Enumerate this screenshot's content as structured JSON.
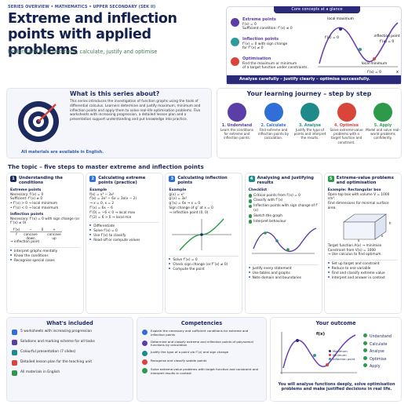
{
  "header": {
    "kicker": "SERIES OVERVIEW • MATHEMATICS • UPPER SECONDARY (SEK II)",
    "title": "Extreme and inflection points with applied problems",
    "subtitle": "Understand the conditions, calculate, justify and optimise"
  },
  "core": {
    "title": "Core concepts at a glance",
    "items": [
      {
        "name": "Extreme points",
        "lines": [
          "f′(x) = 0",
          "Sufficient condition: f″(x) ≠ 0"
        ]
      },
      {
        "name": "Inflection points",
        "lines": [
          "f″(x) = 0 with sign change",
          "for f‴(x) ≠ 0"
        ]
      },
      {
        "name": "Optimisation",
        "lines": [
          "Find the maximum or minimum",
          "of a target function under constraints."
        ]
      }
    ],
    "graph": {
      "max": "local maximum",
      "max_cond": "f′(x) = 0",
      "infl": "inflection point",
      "infl_cond": "f″(x) = 0",
      "min": "local minimum",
      "min_cond": "f′(x) = 0",
      "axis": "x"
    },
    "footer": "Analyse carefully – justify clearly – optimise successfully."
  },
  "about": {
    "title": "What is this series about?",
    "text": "This series introduces the investigation of function graphs using the tools of differential calculus. Learners determine and justify maximum, minimum and inflection points and apply them to solve real-life optimisation problems. Five worksheets with increasing progression, a detailed lesson plan and a presentation support understanding and put knowledge into practice.",
    "note": "All materials are available in English."
  },
  "journey": {
    "title": "Your learning journey – step by step",
    "steps": [
      {
        "name": "1. Understand",
        "text": "Learn the conditions for extreme and inflection points."
      },
      {
        "name": "2. Calculate",
        "text": "Find extreme and inflection points by calculation."
      },
      {
        "name": "3. Analyse",
        "text": "Justify the type of points and interpret the results."
      },
      {
        "name": "4. Optimise",
        "text": "Solve extreme-value problems with a target function and constraint."
      },
      {
        "name": "5. Apply",
        "text": "Model and solve real-world problems confidently."
      }
    ]
  },
  "topic": {
    "title": "The topic – five steps to master extreme and inflection points",
    "columns": [
      {
        "number": "1",
        "title": "Understanding the conditions",
        "blocks": [
          {
            "heading": "Extreme points",
            "lines": [
              "Necessary: f′(x) = 0",
              "Sufficient: f″(x) ≠ 0",
              "• f″(x) > 0 → local minimum",
              "• f″(x) < 0 → local maximum"
            ]
          },
          {
            "heading": "Inflection points",
            "lines": [
              "Necessary: f″(x) = 0 with sign change (or f‴(x) ≠ 0)"
            ]
          }
        ],
        "sign_table": {
          "row1": [
            "f″(x)",
            "−",
            "0",
            "+"
          ],
          "row2": [
            "f",
            "concave down",
            "concave up"
          ],
          "result": "→ inflection point"
        },
        "bullets": [
          "Interpret graphs mentally",
          "Know the conditions",
          "Recognise special cases"
        ]
      },
      {
        "number": "2",
        "title": "Calculating extreme points (practice)",
        "blocks": [
          {
            "heading": "Example",
            "lines": [
              "f(x) = x³ − 3x²",
              "f′(x) = 3x² − 6x = 3x(x − 2)",
              "→ x = 0, x = 2",
              "f″(x) = 6x − 6",
              "f″(0) = −6 < 0 → local max",
              "f″(2) = 6 > 0 → local min"
            ]
          }
        ],
        "bullets": [
          "Differentiate",
          "Solve f′(x) = 0",
          "Use f″(x) to classify",
          "Read off or compute values"
        ]
      },
      {
        "number": "3",
        "title": "Calculating inflection points",
        "blocks": [
          {
            "heading": "Example",
            "lines": [
              "g(x) = x³",
              "g′(x) = 3x²",
              "g″(x) = 6x → x = 0",
              "Sign change of g″ at x = 0",
              "→ inflection point (0, 0)"
            ]
          }
        ],
        "bullets": [
          "Solve f″(x) = 0",
          "Check sign change (or f‴(x) ≠ 0)",
          "Compute the point"
        ]
      },
      {
        "number": "4",
        "title": "Analysing and justifying results",
        "blocks": [
          {
            "heading": "Checklist",
            "checks": [
              "Critical points from f′(x) = 0",
              "Classify with f″(x)",
              "Inflection points with sign change of f″(x)",
              "Sketch the graph",
              "Interpret behaviour"
            ]
          }
        ],
        "bullets": [
          "Justify every statement",
          "Use tables and graphs",
          "Note domain and boundaries"
        ]
      },
      {
        "number": "5",
        "title": "Extreme-value problems and optimisation",
        "blocks": [
          {
            "heading": "Example: Rectangular box",
            "lines": [
              "Open-top box with volume V = 1000 cm³.",
              "Find dimensions for minimal surface area."
            ]
          },
          {
            "lines": [
              "Target function A(x) → minimise",
              "Constraint from V(x) = 1000",
              "→ Use calculus to find optimum."
            ]
          }
        ],
        "box_labels": [
          "h",
          "x",
          "x"
        ],
        "bullets": [
          "Set up target and constraint",
          "Reduce to one variable",
          "Find and classify extreme value",
          "Interpret and answer in context"
        ]
      }
    ]
  },
  "included": {
    "title": "What's included",
    "items": [
      "5 worksheets with increasing progression",
      "Solutions and marking scheme for all tasks",
      "Colourful presentation (7 slides)",
      "Detailed lesson plan for the teaching unit",
      "All materials in English"
    ]
  },
  "competencies": {
    "title": "Competencies",
    "items": [
      "Explain the necessary and sufficient conditions for extreme and inflection points",
      "Determine and classify extreme and inflection points of polynomial functions by calculation",
      "Justify the type of a point via f″(x) and sign change",
      "Recognise and classify saddle points",
      "Solve extreme-value problems with target function and constraint and interpret results in context"
    ]
  },
  "outcome": {
    "title": "Your outcome",
    "graph_label": "f(x)",
    "legend": [
      "Maximum",
      "Minimum",
      "Inflection point"
    ],
    "checks": [
      "Understand",
      "Calculate",
      "Analyse",
      "Optimise",
      "Apply"
    ],
    "text": "You will analyse functions deeply, solve optimisation problems and make justified decisions in real life."
  }
}
